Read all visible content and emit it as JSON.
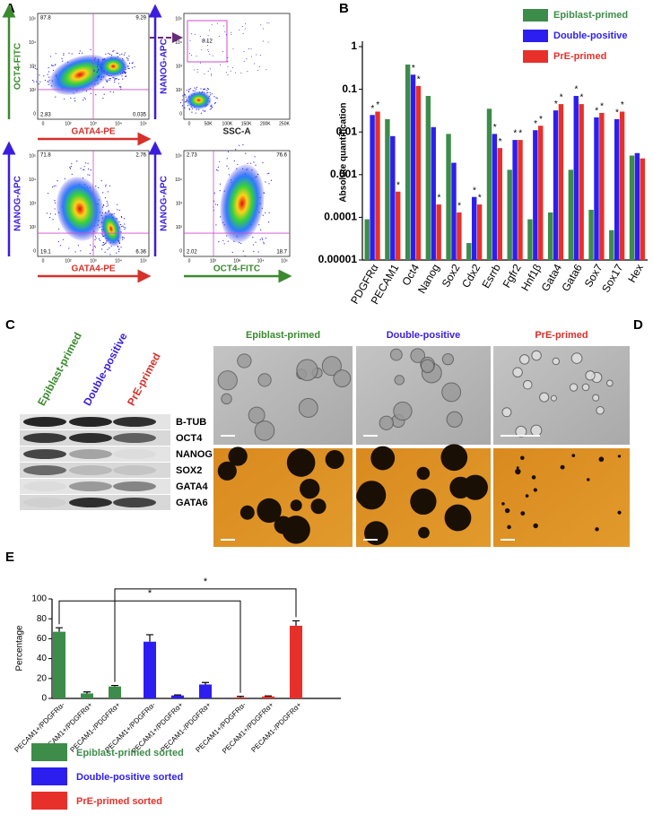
{
  "panel_labels": [
    "A",
    "B",
    "C",
    "D",
    "E"
  ],
  "panel_a": {
    "plots": [
      {
        "x_label": "GATA4-PE",
        "y_label": "OCT4-FITC",
        "x_ticks": [
          "0",
          "10²",
          "10³",
          "10⁴",
          "10⁵"
        ],
        "y_ticks": [
          "0",
          "10²",
          "10³",
          "10⁴",
          "10⁵"
        ],
        "quadrants": [
          "87.8",
          "9.29",
          "2.83",
          "0.035"
        ]
      },
      {
        "x_label": "SSC-A",
        "y_label": "NANOG-APC",
        "x_ticks": [
          "0",
          "50K",
          "100K",
          "150K",
          "200K",
          "250K"
        ],
        "y_ticks": [
          "0",
          "10²",
          "10³",
          "10⁴",
          "10⁵"
        ],
        "gate": "8.12"
      },
      {
        "x_label": "GATA4-PE",
        "y_label": "NANOG-APC",
        "x_ticks": [
          "0",
          "10²",
          "10³",
          "10⁴",
          "10⁵"
        ],
        "y_ticks": [
          "0",
          "10²",
          "10³",
          "10⁴",
          "10⁵"
        ],
        "quadrants": [
          "71.8",
          "2.76",
          "19.1",
          "6.36"
        ]
      },
      {
        "x_label": "OCT4-FITC",
        "y_label": "NANOG-APC",
        "x_ticks": [
          "0",
          "10²",
          "10³",
          "10⁴",
          "10⁵"
        ],
        "y_ticks": [
          "0",
          "10²",
          "10³",
          "10⁴",
          "10⁵"
        ],
        "quadrants": [
          "2.73",
          "76.6",
          "2.02",
          "18.7"
        ]
      }
    ]
  },
  "panel_c": {
    "columns": [
      "Epiblast-primed",
      "Double-positive",
      "PrE-primed"
    ],
    "rows": [
      "B-TUB",
      "OCT4",
      "NANOG",
      "SOX2",
      "GATA4",
      "GATA6"
    ]
  },
  "panel_d": {
    "columns": [
      "Epiblast-primed",
      "Double-positive",
      "PrE-primed"
    ]
  },
  "chart_data": [
    {
      "type": "bar",
      "y_label": "Absolute quantification",
      "log_scale": true,
      "legend": "upper-right",
      "significance_mark": "*",
      "categories": [
        "PDGFRα",
        "PECAM1",
        "Oct4",
        "Nanog",
        "Sox2",
        "Cdx2",
        "Esrrb",
        "Fgfr2",
        "Hnf1β",
        "Gata4",
        "Gata6",
        "Sox7",
        "Sox17",
        "Hex"
      ],
      "series": [
        {
          "name": "Epiblast-primed",
          "color": "#3d8c4a",
          "values": [
            9e-05,
            0.02,
            0.38,
            0.07,
            0.009,
            2.5e-05,
            0.035,
            0.0013,
            9e-05,
            0.00013,
            0.0013,
            0.00015,
            5e-05,
            0.0028
          ],
          "significant": [
            false,
            false,
            false,
            false,
            false,
            false,
            false,
            false,
            false,
            false,
            false,
            false,
            false,
            false
          ]
        },
        {
          "name": "Double-positive",
          "color": "#2d1ef0",
          "values": [
            0.025,
            0.008,
            0.22,
            0.013,
            0.0019,
            0.0003,
            0.009,
            0.0065,
            0.011,
            0.032,
            0.07,
            0.022,
            0.02,
            0.0032
          ],
          "significant": [
            true,
            false,
            true,
            false,
            false,
            true,
            true,
            true,
            true,
            true,
            true,
            true,
            true,
            false
          ]
        },
        {
          "name": "PrE-primed",
          "color": "#e8302a",
          "values": [
            0.03,
            0.0004,
            0.12,
            0.0002,
            0.00013,
            0.0002,
            0.0042,
            0.0065,
            0.014,
            0.045,
            0.045,
            0.028,
            0.03,
            0.0024
          ],
          "significant": [
            true,
            true,
            true,
            true,
            true,
            true,
            true,
            true,
            true,
            true,
            true,
            true,
            true,
            false
          ]
        }
      ],
      "ylim": [
        1e-05,
        1
      ],
      "yticks": [
        1e-05,
        0.0001,
        0.001,
        0.01,
        0.1,
        1
      ]
    },
    {
      "type": "bar",
      "y_label": "Percentage",
      "legend": "bottom",
      "categories": [
        "PECAM1+/PDGFRα-",
        "PECAM1+/PDGFRα+",
        "PECAM1-/PDGFRα+",
        "PECAM1+/PDGFRα-",
        "PECAM1+/PDGFRα+",
        "PECAM1-/PDGFRα+",
        "PECAM1+/PDGFRα-",
        "PECAM1+/PDGFRα+",
        "PECAM1-/PDGFRα+"
      ],
      "series": [
        {
          "name": "Epiblast-primed sorted",
          "color": "#3d8c4a",
          "values": [
            67,
            5,
            12,
            null,
            null,
            null,
            null,
            null,
            null
          ],
          "errors": [
            4,
            1.5,
            1,
            null,
            null,
            null,
            null,
            null,
            null
          ]
        },
        {
          "name": "Double-positive sorted",
          "color": "#2d1ef0",
          "values": [
            null,
            null,
            null,
            57,
            3,
            14,
            null,
            null,
            null
          ],
          "errors": [
            null,
            null,
            null,
            7,
            0.5,
            2,
            null,
            null,
            null
          ]
        },
        {
          "name": "PrE-primed sorted",
          "color": "#e8302a",
          "values": [
            null,
            null,
            null,
            null,
            null,
            null,
            1,
            2,
            73
          ],
          "errors": [
            null,
            null,
            null,
            null,
            null,
            null,
            1,
            0.5,
            5
          ]
        }
      ],
      "ylim": [
        0,
        100
      ],
      "yticks": [
        0,
        20,
        40,
        60,
        80,
        100
      ],
      "comparisons": [
        {
          "label": "*",
          "from": 0,
          "to": 6,
          "level": 98
        },
        {
          "label": "*",
          "from": 2,
          "to": 8,
          "level": 110
        }
      ]
    }
  ]
}
